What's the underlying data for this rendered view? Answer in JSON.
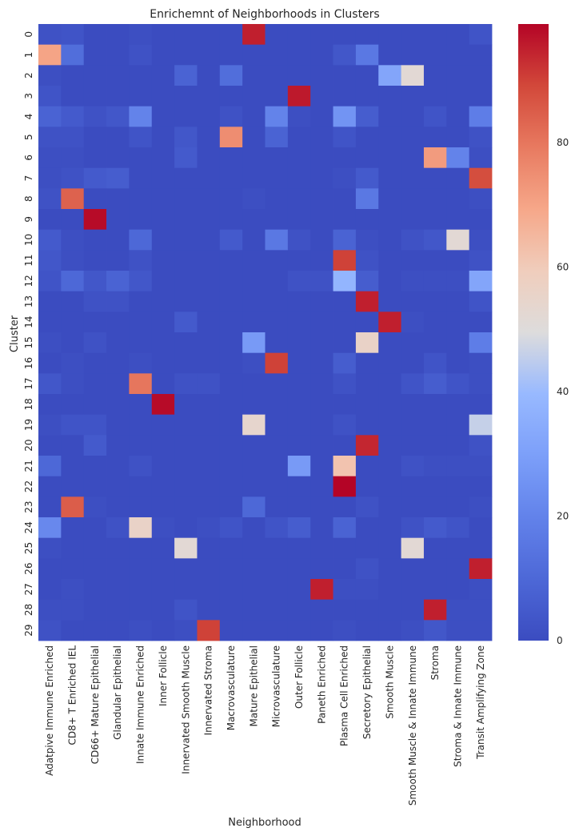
{
  "chart_data": {
    "type": "heatmap",
    "title": "Enrichemnt of Neighborhoods in Clusters",
    "xlabel": "Neighborhood",
    "ylabel": "Cluster",
    "columns": [
      "Adatpive Immune Enriched",
      "CD8+ T Enriched IEL",
      "CD66+ Mature Epithelial",
      "Glandular Epithelial",
      "Innate Immune Enriched",
      "Inner Follicle",
      "Innervated Smooth Muscle",
      "Innervated Stroma",
      "Macrovasculature",
      "Mature Epithelial",
      "Microvasculature",
      "Outer Follicle",
      "Paneth Enriched",
      "Plasma Cell Enriched",
      "Secretory Epithelial",
      "Smooth Muscle",
      "Smooth Muscle & Innate Immune",
      "Stroma",
      "Stroma & Innate Immune",
      "Transit Amplifying Zone"
    ],
    "rows": [
      "0",
      "1",
      "2",
      "3",
      "4",
      "5",
      "6",
      "7",
      "8",
      "9",
      "10",
      "11",
      "12",
      "13",
      "14",
      "15",
      "16",
      "17",
      "18",
      "19",
      "20",
      "21",
      "22",
      "23",
      "24",
      "25",
      "26",
      "27",
      "28",
      "29"
    ],
    "values": [
      [
        2,
        3,
        0,
        0,
        1,
        0,
        0,
        0,
        0,
        95,
        0,
        0,
        0,
        0,
        0,
        0,
        0,
        0,
        0,
        3
      ],
      [
        70,
        12,
        0,
        0,
        2,
        0,
        0,
        0,
        0,
        0,
        0,
        0,
        0,
        4,
        16,
        0,
        0,
        0,
        0,
        0
      ],
      [
        1,
        0,
        0,
        0,
        0,
        0,
        8,
        0,
        12,
        0,
        0,
        0,
        0,
        0,
        0,
        32,
        52,
        0,
        0,
        0
      ],
      [
        3,
        0,
        0,
        0,
        0,
        0,
        0,
        0,
        0,
        0,
        0,
        96,
        0,
        0,
        0,
        0,
        0,
        0,
        0,
        0
      ],
      [
        8,
        5,
        2,
        4,
        20,
        0,
        0,
        0,
        2,
        0,
        20,
        1,
        0,
        26,
        6,
        0,
        0,
        3,
        0,
        18
      ],
      [
        2,
        2,
        0,
        0,
        3,
        0,
        4,
        0,
        75,
        0,
        8,
        0,
        0,
        3,
        0,
        0,
        0,
        0,
        0,
        2
      ],
      [
        1,
        1,
        0,
        0,
        0,
        0,
        5,
        0,
        0,
        0,
        0,
        0,
        0,
        0,
        0,
        0,
        0,
        72,
        20,
        1
      ],
      [
        1,
        2,
        5,
        6,
        0,
        0,
        0,
        0,
        0,
        0,
        0,
        0,
        0,
        1,
        5,
        0,
        0,
        0,
        0,
        88
      ],
      [
        2,
        84,
        0,
        0,
        0,
        0,
        0,
        0,
        0,
        1,
        0,
        0,
        0,
        0,
        16,
        0,
        0,
        0,
        0,
        1
      ],
      [
        0,
        0,
        98,
        0,
        0,
        0,
        0,
        0,
        0,
        0,
        0,
        0,
        0,
        0,
        0,
        0,
        0,
        0,
        0,
        0
      ],
      [
        5,
        1,
        0,
        0,
        10,
        0,
        0,
        0,
        5,
        0,
        16,
        2,
        0,
        8,
        1,
        0,
        2,
        4,
        52,
        1
      ],
      [
        4,
        1,
        0,
        0,
        2,
        0,
        0,
        0,
        0,
        0,
        0,
        0,
        0,
        90,
        2,
        0,
        0,
        0,
        0,
        2
      ],
      [
        3,
        10,
        4,
        8,
        4,
        0,
        0,
        0,
        0,
        0,
        0,
        2,
        2,
        38,
        6,
        0,
        1,
        1,
        1,
        32
      ],
      [
        0,
        0,
        2,
        2,
        0,
        0,
        0,
        0,
        0,
        0,
        0,
        0,
        0,
        0,
        95,
        0,
        0,
        0,
        0,
        3
      ],
      [
        0,
        0,
        0,
        0,
        0,
        0,
        5,
        0,
        0,
        0,
        0,
        0,
        0,
        0,
        0,
        95,
        1,
        0,
        0,
        0
      ],
      [
        1,
        0,
        2,
        0,
        0,
        0,
        0,
        0,
        0,
        28,
        0,
        0,
        0,
        0,
        56,
        0,
        0,
        0,
        0,
        18
      ],
      [
        0,
        1,
        0,
        0,
        1,
        0,
        0,
        0,
        0,
        1,
        90,
        0,
        0,
        6,
        0,
        0,
        0,
        3,
        0,
        1
      ],
      [
        4,
        1,
        0,
        0,
        80,
        0,
        2,
        2,
        0,
        0,
        0,
        0,
        0,
        2,
        0,
        0,
        3,
        6,
        3,
        1
      ],
      [
        0,
        0,
        0,
        0,
        0,
        98,
        0,
        0,
        0,
        0,
        0,
        0,
        0,
        0,
        0,
        0,
        0,
        0,
        0,
        0
      ],
      [
        1,
        3,
        3,
        0,
        0,
        0,
        0,
        0,
        0,
        54,
        0,
        0,
        0,
        2,
        0,
        0,
        0,
        0,
        0,
        46
      ],
      [
        0,
        0,
        5,
        0,
        0,
        0,
        0,
        0,
        0,
        0,
        0,
        0,
        0,
        0,
        94,
        0,
        0,
        0,
        0,
        2
      ],
      [
        10,
        0,
        0,
        0,
        2,
        0,
        0,
        0,
        0,
        0,
        0,
        28,
        0,
        62,
        0,
        0,
        2,
        1,
        1,
        1
      ],
      [
        0,
        0,
        0,
        0,
        0,
        0,
        0,
        0,
        0,
        0,
        0,
        0,
        0,
        99,
        0,
        0,
        0,
        0,
        0,
        0
      ],
      [
        0,
        85,
        1,
        0,
        0,
        0,
        0,
        0,
        0,
        10,
        0,
        0,
        0,
        0,
        2,
        0,
        0,
        0,
        0,
        1
      ],
      [
        22,
        0,
        0,
        2,
        56,
        1,
        0,
        1,
        3,
        0,
        3,
        6,
        0,
        8,
        0,
        0,
        2,
        5,
        3,
        0
      ],
      [
        1,
        0,
        0,
        0,
        0,
        0,
        52,
        0,
        0,
        0,
        0,
        0,
        0,
        0,
        0,
        0,
        52,
        0,
        0,
        0
      ],
      [
        0,
        0,
        0,
        0,
        0,
        0,
        0,
        0,
        0,
        0,
        0,
        0,
        0,
        0,
        2,
        0,
        0,
        0,
        0,
        95
      ],
      [
        0,
        1,
        0,
        0,
        0,
        0,
        0,
        0,
        0,
        0,
        0,
        0,
        95,
        1,
        1,
        0,
        0,
        0,
        0,
        1
      ],
      [
        1,
        1,
        0,
        0,
        0,
        0,
        3,
        0,
        0,
        0,
        0,
        0,
        0,
        0,
        0,
        0,
        0,
        95,
        1,
        1
      ],
      [
        2,
        0,
        0,
        0,
        1,
        0,
        1,
        90,
        0,
        0,
        0,
        0,
        0,
        1,
        0,
        0,
        1,
        4,
        1,
        1
      ]
    ],
    "zlim": [
      0,
      99
    ],
    "colorbar_ticks": [
      0,
      20,
      40,
      60,
      80
    ],
    "colormap": "coolwarm",
    "colors": {
      "low": "#3b4cc0",
      "mid": "#dddddd",
      "high": "#b40426"
    }
  }
}
